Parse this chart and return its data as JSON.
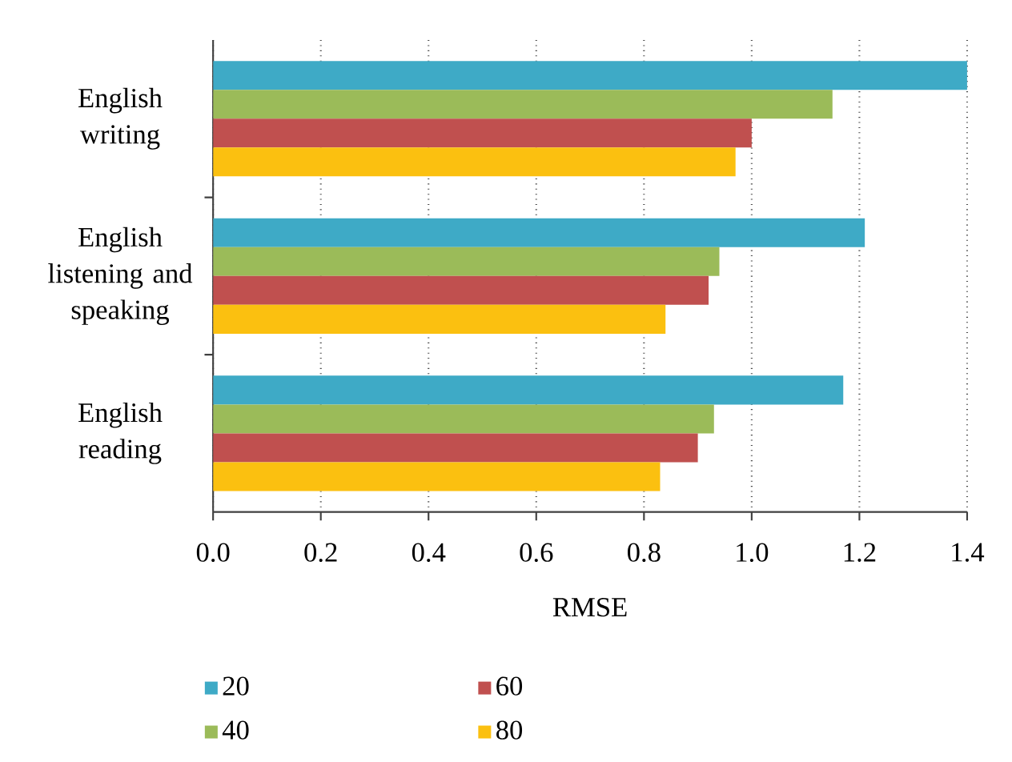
{
  "chart_data": {
    "type": "bar",
    "orientation": "horizontal",
    "xlabel": "RMSE",
    "categories": [
      "English writing",
      "English listening and speaking",
      "English reading"
    ],
    "series": [
      {
        "name": "20",
        "color": "#3eaac6",
        "values": [
          1.4,
          1.21,
          1.17
        ]
      },
      {
        "name": "40",
        "color": "#9bbb59",
        "values": [
          1.15,
          0.94,
          0.93
        ]
      },
      {
        "name": "60",
        "color": "#c0504f",
        "values": [
          1.0,
          0.92,
          0.9
        ]
      },
      {
        "name": "80",
        "color": "#fbc010",
        "values": [
          0.97,
          0.84,
          0.83
        ]
      }
    ],
    "xlim": [
      0,
      1.4
    ],
    "xticks": [
      {
        "value": 0,
        "label": "0.0"
      },
      {
        "value": 0.2,
        "label": "0.2"
      },
      {
        "value": 0.4,
        "label": "0.4"
      },
      {
        "value": 0.6,
        "label": "0.6"
      },
      {
        "value": 0.8,
        "label": "0.8"
      },
      {
        "value": 1.0,
        "label": "1.0"
      },
      {
        "value": 1.2,
        "label": "1.2"
      },
      {
        "value": 1.4,
        "label": "1.4"
      }
    ],
    "grid": "x",
    "legend": "bottom"
  }
}
